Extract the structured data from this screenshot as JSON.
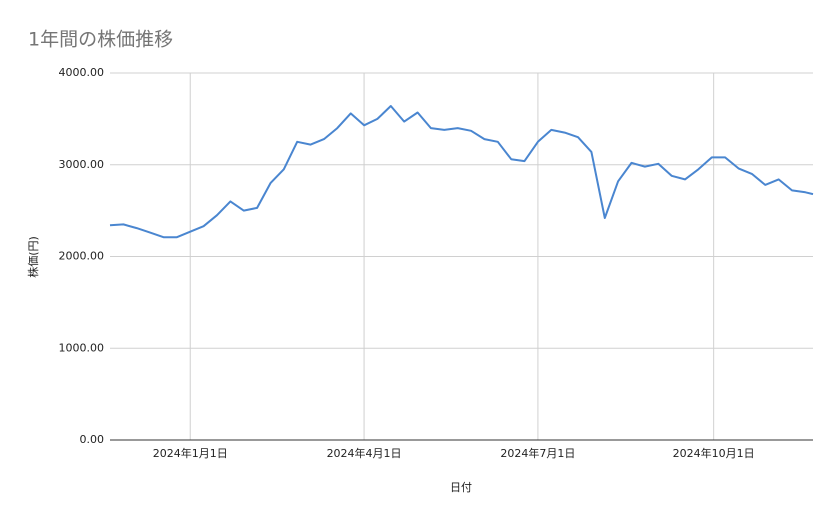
{
  "chart_data": {
    "type": "line",
    "title": "1年間の株価推移",
    "x_label": "日付",
    "y_label": "株価(円)",
    "x": [
      "2023-11-20",
      "2023-11-27",
      "2023-12-04",
      "2023-12-11",
      "2023-12-18",
      "2023-12-25",
      "2024-01-01",
      "2024-01-08",
      "2024-01-15",
      "2024-01-22",
      "2024-01-29",
      "2024-02-05",
      "2024-02-12",
      "2024-02-19",
      "2024-02-26",
      "2024-03-04",
      "2024-03-11",
      "2024-03-18",
      "2024-03-25",
      "2024-04-01",
      "2024-04-08",
      "2024-04-15",
      "2024-04-22",
      "2024-04-29",
      "2024-05-06",
      "2024-05-13",
      "2024-05-20",
      "2024-05-27",
      "2024-06-03",
      "2024-06-10",
      "2024-06-17",
      "2024-06-24",
      "2024-07-01",
      "2024-07-08",
      "2024-07-15",
      "2024-07-22",
      "2024-07-29",
      "2024-08-05",
      "2024-08-12",
      "2024-08-19",
      "2024-08-26",
      "2024-09-02",
      "2024-09-09",
      "2024-09-16",
      "2024-09-23",
      "2024-09-30",
      "2024-10-07",
      "2024-10-14",
      "2024-10-21",
      "2024-10-28",
      "2024-11-04",
      "2024-11-11",
      "2024-11-18",
      "2024-11-22"
    ],
    "values": [
      2340,
      2350,
      2310,
      2260,
      2210,
      2210,
      2270,
      2330,
      2450,
      2600,
      2500,
      2530,
      2800,
      2950,
      3250,
      3220,
      3280,
      3400,
      3560,
      3430,
      3500,
      3640,
      3470,
      3570,
      3400,
      3380,
      3400,
      3370,
      3280,
      3250,
      3060,
      3040,
      3250,
      3380,
      3350,
      3300,
      3140,
      2420,
      2820,
      3020,
      2980,
      3010,
      2880,
      2840,
      2950,
      3080,
      3080,
      2960,
      2900,
      2780,
      2840,
      2720,
      2700,
      2680
    ],
    "color": "#4a86d0",
    "xlim": [
      "2023-11-20",
      "2024-11-22"
    ],
    "xticks": [
      {
        "value": "2024-01-01",
        "label": "2024年1月1日"
      },
      {
        "value": "2024-04-01",
        "label": "2024年4月1日"
      },
      {
        "value": "2024-07-01",
        "label": "2024年7月1日"
      },
      {
        "value": "2024-10-01",
        "label": "2024年10月1日"
      }
    ],
    "ylim": [
      0,
      4000
    ],
    "yticks": [
      {
        "value": 0,
        "label": "0.00"
      },
      {
        "value": 1000,
        "label": "1000.00"
      },
      {
        "value": 2000,
        "label": "2000.00"
      },
      {
        "value": 3000,
        "label": "3000.00"
      },
      {
        "value": 4000,
        "label": "4000.00"
      }
    ],
    "grid": true
  }
}
